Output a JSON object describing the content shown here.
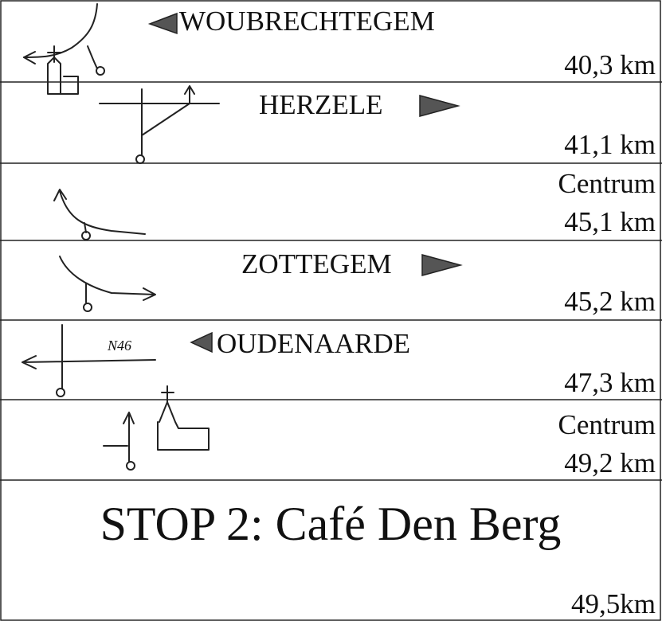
{
  "rows": [
    {
      "direction": "WOUBRECHTEGEM",
      "distance": "40,3 km"
    },
    {
      "direction": "HERZELE",
      "distance": "41,1 km"
    },
    {
      "direction": "Centrum",
      "distance": "45,1 km"
    },
    {
      "direction": "ZOTTEGEM",
      "distance": "45,2 km"
    },
    {
      "direction": "OUDENAARDE",
      "sketch_label": "N46",
      "distance": "47,3 km"
    },
    {
      "direction": "Centrum",
      "distance": "49,2 km"
    }
  ],
  "stop": {
    "title": "STOP 2: Café Den Berg",
    "distance": "49,5km"
  }
}
